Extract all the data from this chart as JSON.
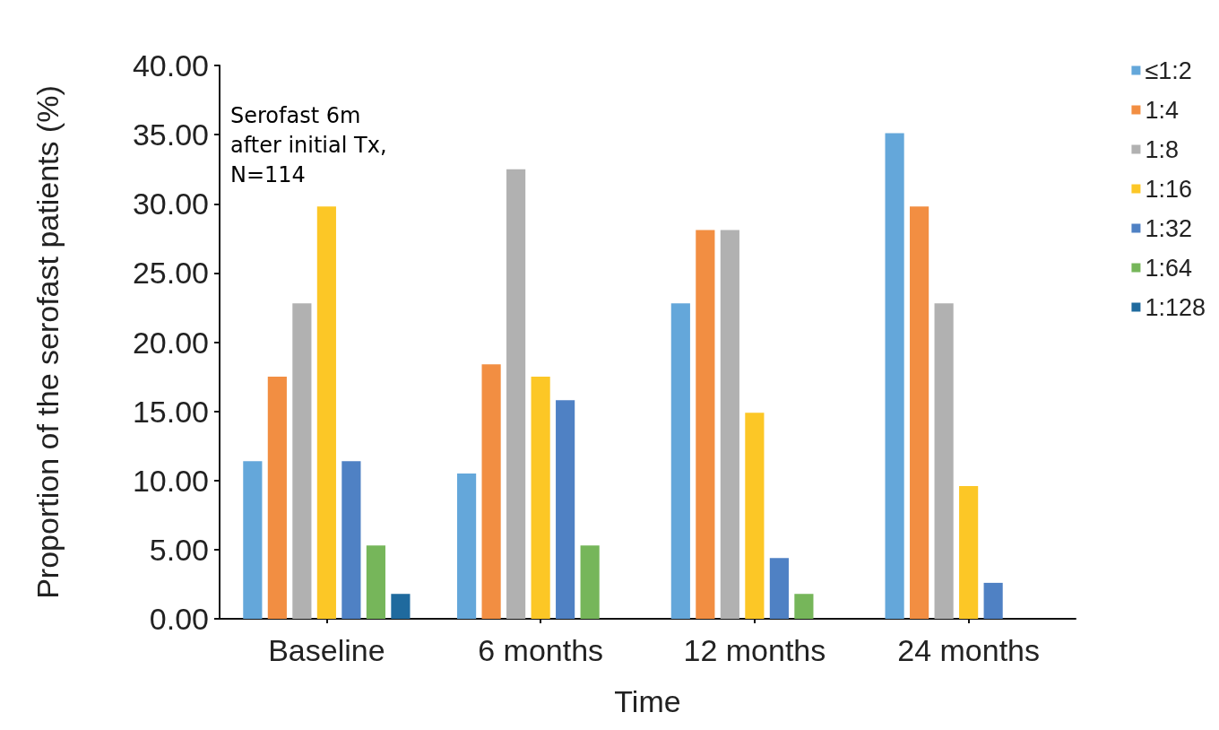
{
  "chart_data": {
    "type": "bar",
    "xlabel": "Time",
    "ylabel": "Proportion of the serofast patients (%)",
    "categories": [
      "Baseline",
      "6 months",
      "12 months",
      "24 months"
    ],
    "series": [
      {
        "name": "≤1:2",
        "color": "#64a7da",
        "values": [
          11.4,
          10.5,
          22.8,
          35.1
        ]
      },
      {
        "name": "1:4",
        "color": "#f28e42",
        "values": [
          17.5,
          18.4,
          28.1,
          29.8
        ]
      },
      {
        "name": "1:8",
        "color": "#b1b1b1",
        "values": [
          22.8,
          32.5,
          28.1,
          22.8
        ]
      },
      {
        "name": "1:16",
        "color": "#fcc726",
        "values": [
          29.8,
          17.5,
          14.9,
          9.6
        ]
      },
      {
        "name": "1:32",
        "color": "#4f81c4",
        "values": [
          11.4,
          15.8,
          4.4,
          2.6
        ]
      },
      {
        "name": "1:64",
        "color": "#76b65a",
        "values": [
          5.3,
          5.3,
          1.8,
          null
        ]
      },
      {
        "name": "1:128",
        "color": "#1f6a9e",
        "values": [
          1.8,
          null,
          null,
          null
        ]
      }
    ],
    "ylim": [
      0,
      40
    ],
    "yticks": [
      {
        "value": 0,
        "label": "0.00"
      },
      {
        "value": 5,
        "label": "5.00"
      },
      {
        "value": 10,
        "label": "10.00"
      },
      {
        "value": 15,
        "label": "15.00"
      },
      {
        "value": 20,
        "label": "20.00"
      },
      {
        "value": 25,
        "label": "25.00"
      },
      {
        "value": 30,
        "label": "30.00"
      },
      {
        "value": 35,
        "label": "35.00"
      },
      {
        "value": 40,
        "label": "40.00"
      }
    ],
    "annotations": [
      "Serofast 6m\nafter initial Tx,\nN=114"
    ],
    "grid": false,
    "legend": "right"
  }
}
